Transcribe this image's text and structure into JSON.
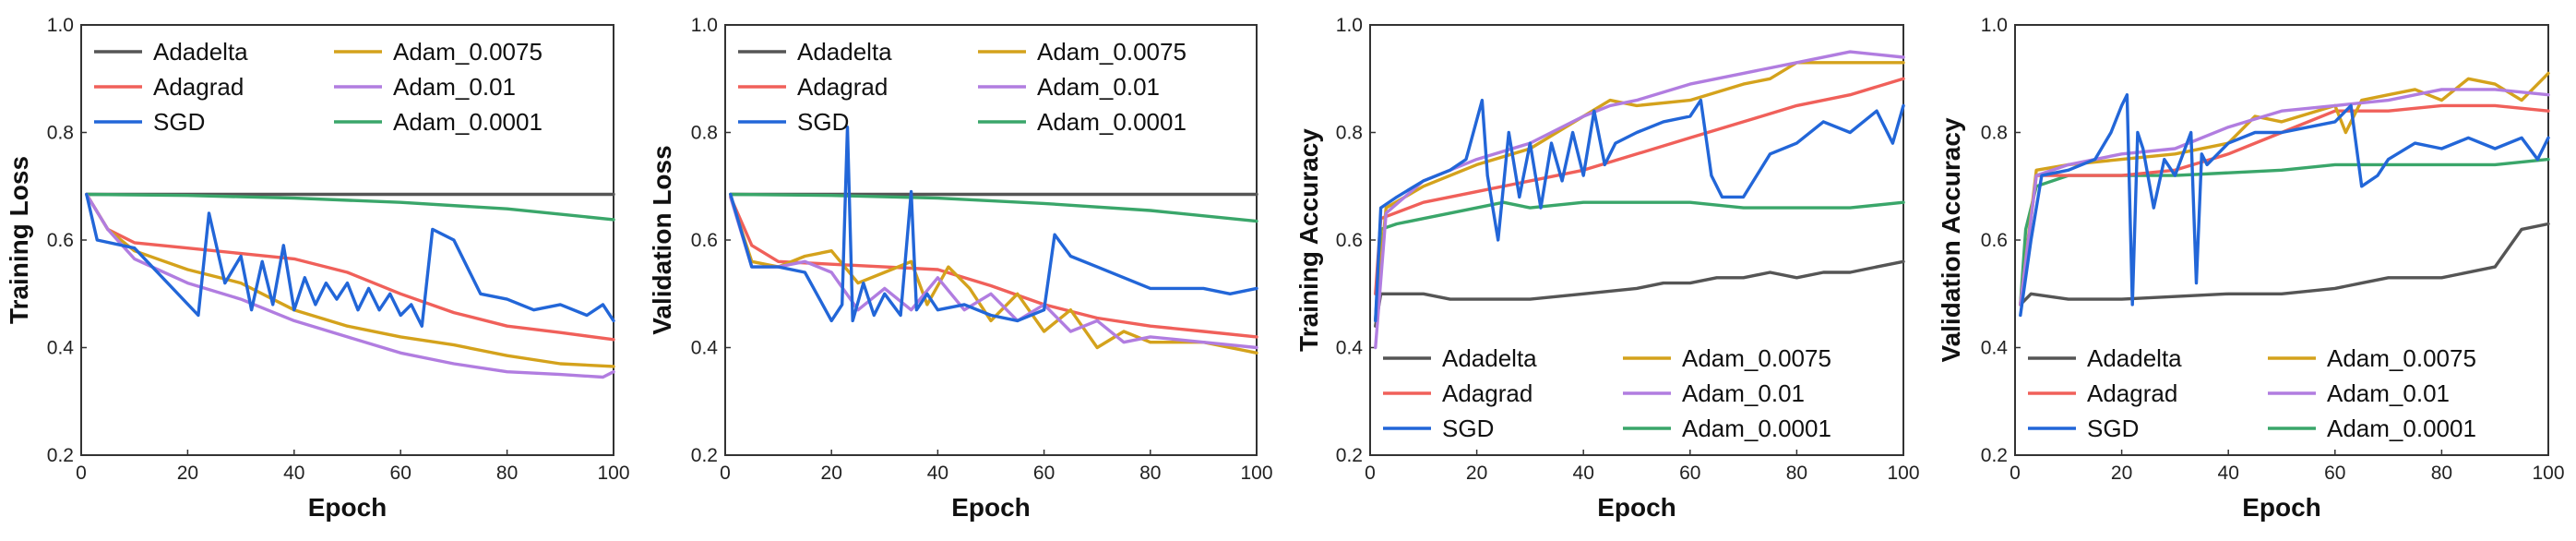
{
  "colors": {
    "Adadelta": "#555555",
    "Adagrad": "#f0605a",
    "SGD": "#2266d8",
    "Adam_0.0075": "#d4a21c",
    "Adam_0.01": "#b17de0",
    "Adam_0.0001": "#3aa66a"
  },
  "chart_data": [
    {
      "type": "line",
      "xlabel": "Epoch",
      "ylabel": "Training Loss",
      "xlim": [
        0,
        100
      ],
      "ylim": [
        0.2,
        1.0
      ],
      "xticks": [
        "0",
        "20",
        "40",
        "60",
        "80",
        "100"
      ],
      "yticks": [
        "0.2",
        "0.4",
        "0.6",
        "0.8",
        "1.0"
      ],
      "grid": false,
      "legend": "top-left",
      "legend_order": [
        "Adadelta",
        "Adam_0.0075",
        "Adagrad",
        "Adam_0.01",
        "SGD",
        "Adam_0.0001"
      ],
      "series": [
        {
          "name": "Adadelta",
          "x": [
            1,
            100
          ],
          "y": [
            0.685,
            0.685
          ]
        },
        {
          "name": "Adam_0.0001",
          "x": [
            1,
            20,
            40,
            60,
            80,
            100
          ],
          "y": [
            0.685,
            0.683,
            0.678,
            0.67,
            0.658,
            0.638
          ]
        },
        {
          "name": "Adagrad",
          "x": [
            1,
            5,
            10,
            20,
            30,
            40,
            50,
            60,
            70,
            80,
            90,
            100
          ],
          "y": [
            0.685,
            0.62,
            0.595,
            0.585,
            0.575,
            0.565,
            0.54,
            0.5,
            0.465,
            0.44,
            0.428,
            0.415
          ]
        },
        {
          "name": "Adam_0.0075",
          "x": [
            1,
            5,
            10,
            20,
            30,
            40,
            50,
            60,
            70,
            80,
            90,
            100
          ],
          "y": [
            0.685,
            0.62,
            0.58,
            0.545,
            0.52,
            0.47,
            0.44,
            0.42,
            0.405,
            0.385,
            0.37,
            0.365
          ]
        },
        {
          "name": "Adam_0.01",
          "x": [
            1,
            5,
            10,
            20,
            30,
            40,
            50,
            60,
            70,
            80,
            90,
            98,
            100
          ],
          "y": [
            0.685,
            0.62,
            0.565,
            0.52,
            0.49,
            0.45,
            0.42,
            0.39,
            0.37,
            0.355,
            0.35,
            0.345,
            0.355
          ]
        },
        {
          "name": "SGD",
          "x": [
            1,
            3,
            10,
            22,
            24,
            27,
            30,
            32,
            34,
            36,
            38,
            40,
            42,
            44,
            46,
            48,
            50,
            52,
            54,
            56,
            58,
            60,
            62,
            64,
            66,
            70,
            75,
            80,
            85,
            90,
            95,
            98,
            100
          ],
          "y": [
            0.685,
            0.6,
            0.585,
            0.46,
            0.65,
            0.52,
            0.57,
            0.47,
            0.56,
            0.48,
            0.59,
            0.47,
            0.53,
            0.48,
            0.52,
            0.49,
            0.52,
            0.47,
            0.51,
            0.47,
            0.5,
            0.46,
            0.48,
            0.44,
            0.62,
            0.6,
            0.5,
            0.49,
            0.47,
            0.48,
            0.46,
            0.48,
            0.45
          ]
        }
      ]
    },
    {
      "type": "line",
      "xlabel": "Epoch",
      "ylabel": "Validation Loss",
      "xlim": [
        0,
        100
      ],
      "ylim": [
        0.2,
        1.0
      ],
      "xticks": [
        "0",
        "20",
        "40",
        "60",
        "80",
        "100"
      ],
      "yticks": [
        "0.2",
        "0.4",
        "0.6",
        "0.8",
        "1.0"
      ],
      "grid": false,
      "legend": "top-left",
      "legend_order": [
        "Adadelta",
        "Adam_0.0075",
        "Adagrad",
        "Adam_0.01",
        "SGD",
        "Adam_0.0001"
      ],
      "series": [
        {
          "name": "Adadelta",
          "x": [
            1,
            100
          ],
          "y": [
            0.685,
            0.685
          ]
        },
        {
          "name": "Adam_0.0001",
          "x": [
            1,
            20,
            40,
            60,
            80,
            100
          ],
          "y": [
            0.685,
            0.683,
            0.678,
            0.668,
            0.655,
            0.635
          ]
        },
        {
          "name": "Adagrad",
          "x": [
            1,
            5,
            10,
            20,
            30,
            40,
            50,
            60,
            70,
            80,
            90,
            100
          ],
          "y": [
            0.68,
            0.59,
            0.56,
            0.555,
            0.55,
            0.545,
            0.515,
            0.48,
            0.455,
            0.44,
            0.43,
            0.42
          ]
        },
        {
          "name": "Adam_0.0075",
          "x": [
            1,
            5,
            10,
            15,
            20,
            25,
            30,
            35,
            38,
            42,
            46,
            50,
            55,
            60,
            65,
            70,
            75,
            80,
            90,
            100
          ],
          "y": [
            0.68,
            0.56,
            0.55,
            0.57,
            0.58,
            0.52,
            0.54,
            0.56,
            0.48,
            0.55,
            0.51,
            0.45,
            0.5,
            0.43,
            0.47,
            0.4,
            0.43,
            0.41,
            0.41,
            0.39
          ]
        },
        {
          "name": "Adam_0.01",
          "x": [
            1,
            5,
            10,
            15,
            20,
            25,
            30,
            35,
            40,
            45,
            50,
            55,
            60,
            65,
            70,
            75,
            80,
            90,
            100
          ],
          "y": [
            0.68,
            0.55,
            0.55,
            0.56,
            0.54,
            0.47,
            0.51,
            0.47,
            0.53,
            0.47,
            0.5,
            0.45,
            0.48,
            0.43,
            0.45,
            0.41,
            0.42,
            0.41,
            0.4
          ]
        },
        {
          "name": "SGD",
          "x": [
            1,
            5,
            10,
            15,
            20,
            22,
            23,
            24,
            26,
            28,
            30,
            33,
            35,
            36,
            38,
            40,
            45,
            50,
            55,
            60,
            62,
            65,
            70,
            80,
            90,
            95,
            100
          ],
          "y": [
            0.685,
            0.55,
            0.55,
            0.54,
            0.45,
            0.48,
            0.81,
            0.45,
            0.52,
            0.46,
            0.5,
            0.46,
            0.69,
            0.47,
            0.5,
            0.47,
            0.48,
            0.46,
            0.45,
            0.47,
            0.61,
            0.57,
            0.55,
            0.51,
            0.51,
            0.5,
            0.51
          ]
        }
      ]
    },
    {
      "type": "line",
      "xlabel": "Epoch",
      "ylabel": "Training Accuracy",
      "xlim": [
        0,
        100
      ],
      "ylim": [
        0.2,
        1.0
      ],
      "xticks": [
        "0",
        "20",
        "40",
        "60",
        "80",
        "100"
      ],
      "yticks": [
        "0.2",
        "0.4",
        "0.6",
        "0.8",
        "1.0"
      ],
      "grid": false,
      "legend": "bottom-left",
      "legend_order": [
        "Adadelta",
        "Adam_0.0075",
        "Adagrad",
        "Adam_0.01",
        "SGD",
        "Adam_0.0001"
      ],
      "series": [
        {
          "name": "Adadelta",
          "x": [
            1,
            2,
            10,
            15,
            30,
            40,
            50,
            55,
            60,
            65,
            70,
            75,
            80,
            85,
            90,
            95,
            100
          ],
          "y": [
            0.44,
            0.5,
            0.5,
            0.49,
            0.49,
            0.5,
            0.51,
            0.52,
            0.52,
            0.53,
            0.53,
            0.54,
            0.53,
            0.54,
            0.54,
            0.55,
            0.56
          ]
        },
        {
          "name": "Adam_0.0001",
          "x": [
            1,
            2,
            5,
            10,
            20,
            25,
            30,
            40,
            50,
            60,
            70,
            80,
            90,
            100
          ],
          "y": [
            0.45,
            0.62,
            0.63,
            0.64,
            0.66,
            0.67,
            0.66,
            0.67,
            0.67,
            0.67,
            0.66,
            0.66,
            0.66,
            0.67
          ]
        },
        {
          "name": "Adagrad",
          "x": [
            1,
            2,
            10,
            20,
            30,
            40,
            50,
            60,
            70,
            80,
            90,
            100
          ],
          "y": [
            0.5,
            0.64,
            0.67,
            0.69,
            0.71,
            0.73,
            0.76,
            0.79,
            0.82,
            0.85,
            0.87,
            0.9
          ]
        },
        {
          "name": "Adam_0.0075",
          "x": [
            1,
            3,
            10,
            20,
            30,
            35,
            40,
            45,
            50,
            60,
            70,
            75,
            80,
            90,
            100
          ],
          "y": [
            0.45,
            0.66,
            0.7,
            0.74,
            0.77,
            0.8,
            0.83,
            0.86,
            0.85,
            0.86,
            0.89,
            0.9,
            0.93,
            0.93,
            0.93
          ]
        },
        {
          "name": "Adam_0.01",
          "x": [
            1,
            3,
            10,
            20,
            30,
            40,
            45,
            50,
            60,
            70,
            80,
            90,
            100
          ],
          "y": [
            0.4,
            0.65,
            0.71,
            0.75,
            0.78,
            0.83,
            0.85,
            0.86,
            0.89,
            0.91,
            0.93,
            0.95,
            0.94
          ]
        },
        {
          "name": "SGD",
          "x": [
            1,
            2,
            5,
            10,
            15,
            18,
            21,
            22,
            24,
            26,
            28,
            30,
            32,
            34,
            36,
            38,
            40,
            42,
            44,
            46,
            50,
            55,
            60,
            62,
            64,
            66,
            70,
            75,
            80,
            85,
            90,
            95,
            98,
            100
          ],
          "y": [
            0.45,
            0.66,
            0.68,
            0.71,
            0.73,
            0.75,
            0.86,
            0.72,
            0.6,
            0.8,
            0.68,
            0.78,
            0.66,
            0.78,
            0.71,
            0.8,
            0.72,
            0.84,
            0.74,
            0.78,
            0.8,
            0.82,
            0.83,
            0.86,
            0.72,
            0.68,
            0.68,
            0.76,
            0.78,
            0.82,
            0.8,
            0.84,
            0.78,
            0.85
          ]
        }
      ]
    },
    {
      "type": "line",
      "xlabel": "Epoch",
      "ylabel": "Validation Accuracy",
      "xlim": [
        0,
        100
      ],
      "ylim": [
        0.2,
        1.0
      ],
      "xticks": [
        "0",
        "20",
        "40",
        "60",
        "80",
        "100"
      ],
      "yticks": [
        "0.2",
        "0.4",
        "0.6",
        "0.8",
        "1.0"
      ],
      "grid": false,
      "legend": "bottom-left",
      "legend_order": [
        "Adadelta",
        "Adam_0.0075",
        "Adagrad",
        "Adam_0.01",
        "SGD",
        "Adam_0.0001"
      ],
      "series": [
        {
          "name": "Adadelta",
          "x": [
            1,
            3,
            10,
            20,
            40,
            50,
            60,
            65,
            70,
            80,
            90,
            95,
            100
          ],
          "y": [
            0.48,
            0.5,
            0.49,
            0.49,
            0.5,
            0.5,
            0.51,
            0.52,
            0.53,
            0.53,
            0.55,
            0.62,
            0.63
          ]
        },
        {
          "name": "Adam_0.0001",
          "x": [
            1,
            2,
            4,
            10,
            30,
            50,
            60,
            70,
            80,
            90,
            100
          ],
          "y": [
            0.48,
            0.62,
            0.7,
            0.72,
            0.72,
            0.73,
            0.74,
            0.74,
            0.74,
            0.74,
            0.75
          ]
        },
        {
          "name": "Adagrad",
          "x": [
            1,
            4,
            10,
            20,
            30,
            40,
            50,
            60,
            70,
            80,
            90,
            100
          ],
          "y": [
            0.48,
            0.72,
            0.72,
            0.72,
            0.73,
            0.76,
            0.8,
            0.84,
            0.84,
            0.85,
            0.85,
            0.84
          ]
        },
        {
          "name": "Adam_0.0075",
          "x": [
            1,
            4,
            10,
            20,
            30,
            40,
            45,
            50,
            60,
            62,
            65,
            70,
            75,
            80,
            85,
            90,
            95,
            100
          ],
          "y": [
            0.48,
            0.73,
            0.74,
            0.75,
            0.76,
            0.78,
            0.83,
            0.82,
            0.85,
            0.8,
            0.86,
            0.87,
            0.88,
            0.86,
            0.9,
            0.89,
            0.86,
            0.91
          ]
        },
        {
          "name": "Adam_0.01",
          "x": [
            1,
            4,
            10,
            20,
            30,
            40,
            50,
            60,
            70,
            80,
            90,
            100
          ],
          "y": [
            0.48,
            0.72,
            0.74,
            0.76,
            0.77,
            0.81,
            0.84,
            0.85,
            0.86,
            0.88,
            0.88,
            0.87
          ]
        },
        {
          "name": "SGD",
          "x": [
            1,
            3,
            5,
            10,
            15,
            18,
            20,
            21,
            22,
            23,
            24,
            26,
            28,
            30,
            33,
            34,
            35,
            36,
            40,
            45,
            50,
            55,
            60,
            63,
            65,
            68,
            70,
            75,
            80,
            85,
            90,
            95,
            98,
            100
          ],
          "y": [
            0.46,
            0.6,
            0.72,
            0.73,
            0.75,
            0.8,
            0.85,
            0.87,
            0.48,
            0.8,
            0.77,
            0.66,
            0.75,
            0.72,
            0.8,
            0.52,
            0.76,
            0.74,
            0.78,
            0.8,
            0.8,
            0.81,
            0.82,
            0.85,
            0.7,
            0.72,
            0.75,
            0.78,
            0.77,
            0.79,
            0.77,
            0.79,
            0.75,
            0.79
          ]
        }
      ]
    }
  ]
}
